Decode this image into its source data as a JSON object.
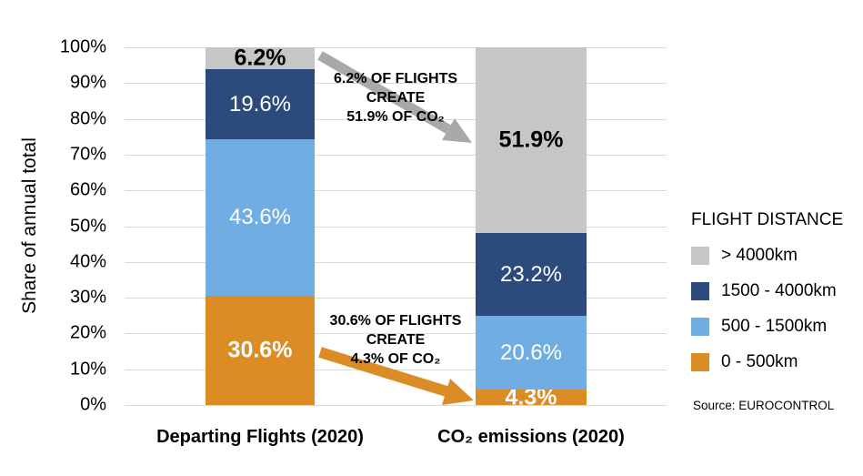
{
  "chart_data": {
    "type": "bar",
    "stacked": true,
    "title": "",
    "ylabel": "Share of annual total",
    "ylim": [
      0,
      100
    ],
    "yticks": [
      "0%",
      "10%",
      "20%",
      "30%",
      "40%",
      "50%",
      "60%",
      "70%",
      "80%",
      "90%",
      "100%"
    ],
    "grid": true,
    "legend_position": "right",
    "categories": [
      "Departing Flights (2020)",
      "CO₂ emissions (2020)"
    ],
    "series": [
      {
        "name": "0 - 500km",
        "color": "#DC8C24",
        "values": [
          30.6,
          4.3
        ],
        "labels": [
          "30.6%",
          "4.3%"
        ],
        "label_color": "#ffffff",
        "label_bold": true
      },
      {
        "name": "500 - 1500km",
        "color": "#70ADE2",
        "values": [
          43.6,
          20.6
        ],
        "labels": [
          "43.6%",
          "20.6%"
        ],
        "label_color": "#ffffff",
        "label_bold": false
      },
      {
        "name": "1500 - 4000km",
        "color": "#2D4A7C",
        "values": [
          19.6,
          23.2
        ],
        "labels": [
          "19.6%",
          "23.2%"
        ],
        "label_color": "#ffffff",
        "label_bold": false
      },
      {
        "name": "> 4000km",
        "color": "#C6C6C6",
        "values": [
          6.2,
          51.9
        ],
        "labels": [
          "6.2%",
          "51.9%"
        ],
        "label_color": "#000000",
        "label_bold": true
      }
    ],
    "legend_title": "FLIGHT DISTANCE",
    "source": "Source: EUROCONTROL",
    "annotations": [
      {
        "lines": [
          "6.2% OF FLIGHTS",
          "CREATE",
          "51.9% OF CO₂"
        ],
        "arrow_color": "#A9A9A9"
      },
      {
        "lines": [
          "30.6% OF FLIGHTS",
          "CREATE",
          "4.3% OF CO₂"
        ],
        "arrow_color": "#DC8C24"
      }
    ]
  }
}
